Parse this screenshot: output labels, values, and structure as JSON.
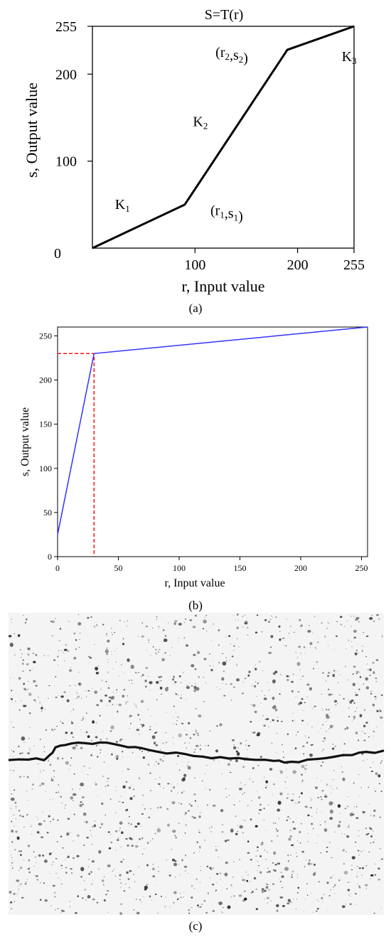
{
  "chart_data": [
    {
      "panel": "a",
      "type": "line",
      "title": "S=T(r)",
      "xlabel": "r, Input value",
      "ylabel": "s, Output value",
      "xlim": [
        0,
        255
      ],
      "ylim": [
        0,
        255
      ],
      "xticks": [
        100,
        200,
        255
      ],
      "xtick_labels": [
        "100",
        "200",
        "255"
      ],
      "yticks": [
        0,
        100,
        200,
        255
      ],
      "ytick_labels": [
        "0",
        "100",
        "200",
        "255"
      ],
      "x": [
        0,
        90,
        190,
        255
      ],
      "y": [
        0,
        50,
        228,
        255
      ],
      "annotations": [
        {
          "base": "K",
          "sub": "1",
          "x": 22,
          "y": 45
        },
        {
          "base": "K",
          "sub": "2",
          "x": 98,
          "y": 140
        },
        {
          "base": "K",
          "sub": "3",
          "x": 243,
          "y": 215
        },
        {
          "parts": [
            [
              "(r",
              ""
            ],
            [
              "2",
              "sub"
            ],
            [
              ",s",
              ""
            ],
            [
              "2",
              "sub"
            ],
            [
              ")",
              ""
            ]
          ],
          "x": 120,
          "y": 220
        },
        {
          "parts": [
            [
              "(r",
              ""
            ],
            [
              "1",
              "sub"
            ],
            [
              ",s",
              ""
            ],
            [
              "1",
              "sub"
            ],
            [
              ")",
              ""
            ]
          ],
          "x": 115,
          "y": 38
        }
      ],
      "grid": false
    },
    {
      "panel": "b",
      "type": "line",
      "xlabel": "r, Input value",
      "ylabel": "s, Output value",
      "xlim": [
        0,
        255
      ],
      "ylim": [
        0,
        260
      ],
      "xticks": [
        0,
        50,
        100,
        150,
        200,
        250
      ],
      "yticks": [
        0,
        50,
        100,
        150,
        200,
        250
      ],
      "x": [
        0,
        30,
        255
      ],
      "y": [
        25,
        230,
        260
      ],
      "line_color": "#3333ff",
      "reference_lines": {
        "x": 30,
        "y": 230,
        "color": "#ff0000"
      },
      "grid": false
    }
  ],
  "captions": {
    "a": "(a)",
    "b": "(b)",
    "c": "(c)"
  },
  "photo": {
    "name": "crack-image",
    "background": "#f4f4f4",
    "crack_color": "#111111"
  }
}
